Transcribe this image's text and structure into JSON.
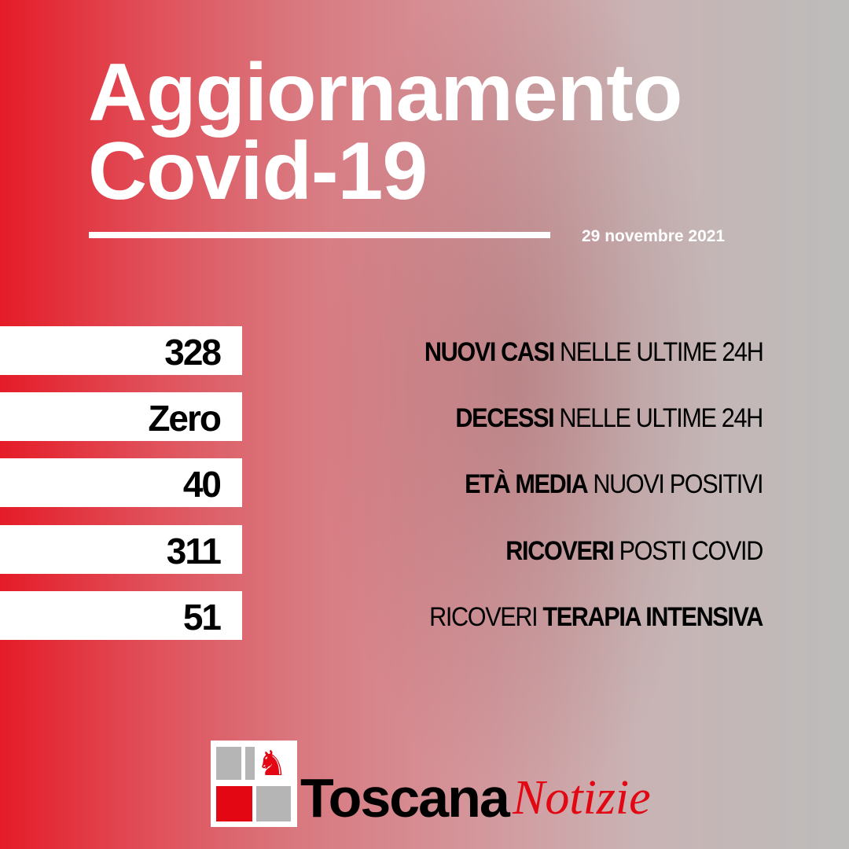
{
  "title": {
    "line1": "Aggiornamento",
    "line2": "Covid-19"
  },
  "date": "29 novembre 2021",
  "stats": [
    {
      "value": "328",
      "label_bold": "NUOVI CASI",
      "label_regular": " NELLE ULTIME 24H"
    },
    {
      "value": "Zero",
      "label_bold": "DECESSI",
      "label_regular": " NELLE ULTIME 24H"
    },
    {
      "value": "40",
      "label_bold": "ETÀ MEDIA",
      "label_regular": " NUOVI POSITIVI"
    },
    {
      "value": "311",
      "label_bold": "RICOVERI",
      "label_regular": " POSTI COVID"
    },
    {
      "value": "51",
      "label_regular_first": "RICOVERI ",
      "label_bold": "TERAPIA INTENSIVA"
    }
  ],
  "logo": {
    "brand": "Toscana",
    "brand_italic": "Notizie"
  },
  "colors": {
    "accent": "#e41c28",
    "logo_red": "#e30613"
  }
}
